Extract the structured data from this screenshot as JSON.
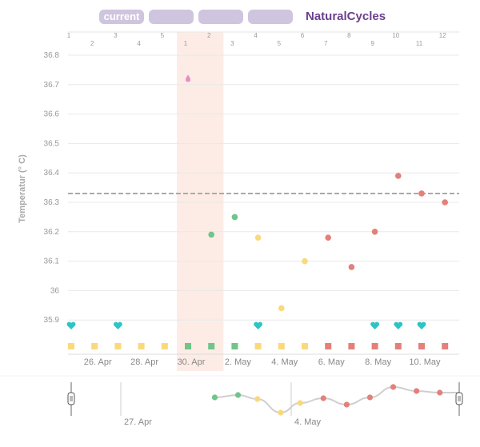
{
  "header": {
    "tabs": [
      {
        "label": "current",
        "active": true
      },
      {
        "label": "",
        "active": false
      },
      {
        "label": "",
        "active": false
      },
      {
        "label": "",
        "active": false
      }
    ],
    "brand": "NaturalCycles"
  },
  "colors": {
    "green": "#6fc58a",
    "yellow": "#f9d97c",
    "red": "#e3807a",
    "teal": "#2ec4c4",
    "pink_dot": "#e58fbf",
    "fertile_band": "#fdece6",
    "gray_line": "#999999"
  },
  "chart_data": {
    "type": "scatter",
    "ylabel": "Temperatur (° C)",
    "y_ticks": [
      "36.8",
      "36.7",
      "36.6",
      "36.5",
      "36.4",
      "36.3",
      "36.2",
      "36.1",
      "36",
      "35.9"
    ],
    "ylim": [
      35.86,
      36.86
    ],
    "cover_line": 36.33,
    "days_top": [
      "1",
      "2",
      "3",
      "4",
      "5",
      "1",
      "2",
      "3",
      "4",
      "5",
      "6",
      "7",
      "8",
      "9",
      "10",
      "11",
      "12"
    ],
    "x_date_labels": [
      "26. Apr",
      "28. Apr",
      "30. Apr",
      "2. May",
      "4. May",
      "6. May",
      "8. May",
      "10. May"
    ],
    "fertile_days": [
      5,
      6
    ],
    "temps": [
      {
        "day": 5,
        "value": 36.72,
        "color": "pink"
      },
      {
        "day": 6,
        "value": 36.19,
        "color": "green"
      },
      {
        "day": 7,
        "value": 36.25,
        "color": "green"
      },
      {
        "day": 8,
        "value": 36.18,
        "color": "yellow"
      },
      {
        "day": 9,
        "value": 35.94,
        "color": "yellow"
      },
      {
        "day": 10,
        "value": 36.1,
        "color": "yellow"
      },
      {
        "day": 11,
        "value": 36.18,
        "color": "red"
      },
      {
        "day": 12,
        "value": 36.08,
        "color": "red"
      },
      {
        "day": 13,
        "value": 36.2,
        "color": "red"
      },
      {
        "day": 14,
        "value": 36.39,
        "color": "red"
      },
      {
        "day": 15,
        "value": 36.33,
        "color": "red"
      },
      {
        "day": 16,
        "value": 36.3,
        "color": "red"
      }
    ],
    "hearts": [
      0,
      2,
      8,
      13,
      14,
      15
    ],
    "day_squares": [
      "yellow",
      "yellow",
      "yellow",
      "yellow",
      "yellow",
      "green",
      "green",
      "green",
      "yellow",
      "yellow",
      "yellow",
      "red",
      "red",
      "red",
      "red",
      "red",
      "red"
    ],
    "overview_labels": [
      "27. Apr",
      "4. May"
    ],
    "overview_points": [
      {
        "pos": 0.37,
        "color": "green"
      },
      {
        "pos": 0.43,
        "color": "green"
      },
      {
        "pos": 0.48,
        "color": "yellow"
      },
      {
        "pos": 0.54,
        "color": "yellow"
      },
      {
        "pos": 0.59,
        "color": "yellow"
      },
      {
        "pos": 0.65,
        "color": "red"
      },
      {
        "pos": 0.71,
        "color": "red"
      },
      {
        "pos": 0.77,
        "color": "red"
      },
      {
        "pos": 0.83,
        "color": "red"
      },
      {
        "pos": 0.89,
        "color": "red"
      },
      {
        "pos": 0.95,
        "color": "red"
      }
    ]
  }
}
